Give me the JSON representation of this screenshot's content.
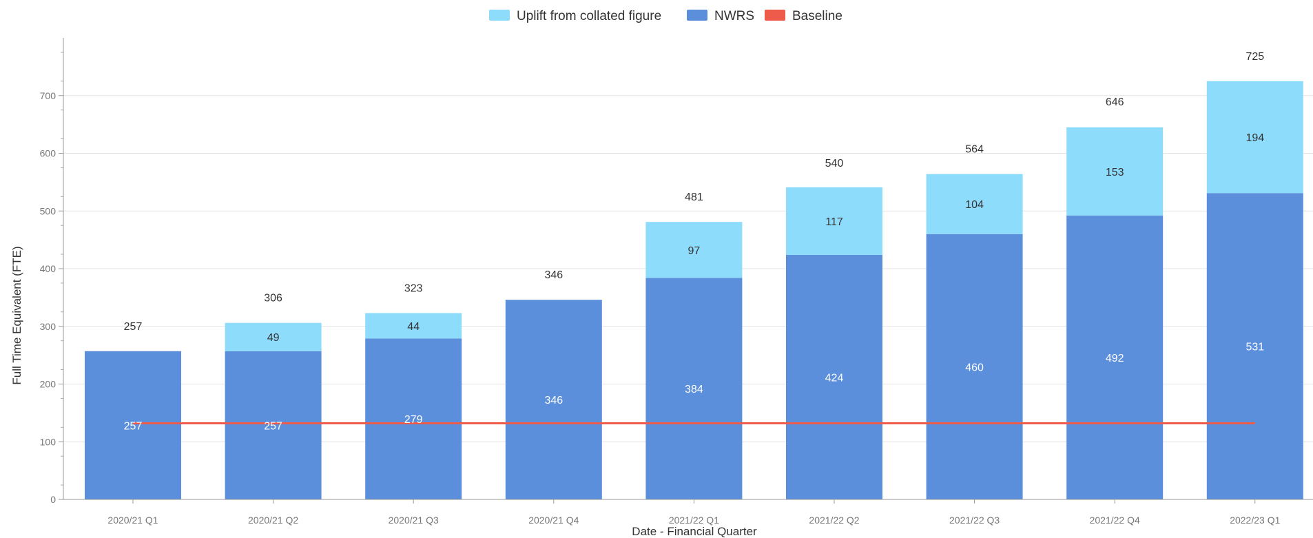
{
  "chart_data": {
    "type": "bar",
    "stacked": true,
    "title": "",
    "xlabel": "Date - Financial Quarter",
    "ylabel": "Full Time Equivalent (FTE)",
    "ylim": [
      0,
      800
    ],
    "yticks": [
      0,
      100,
      200,
      300,
      400,
      500,
      600,
      700
    ],
    "grid": true,
    "legend_position": "top-center",
    "categories": [
      "2020/21 Q1",
      "2020/21 Q2",
      "2020/21 Q3",
      "2020/21 Q4",
      "2021/22 Q1",
      "2021/22 Q2",
      "2021/22 Q3",
      "2021/22 Q4",
      "2022/23 Q1"
    ],
    "series": [
      {
        "name": "NWRS",
        "color": "#5b8fdc",
        "values": [
          257,
          257,
          279,
          346,
          384,
          424,
          460,
          492,
          531
        ]
      },
      {
        "name": "Uplift from collated figure",
        "color": "#8edcfb",
        "values": [
          null,
          49,
          44,
          null,
          97,
          117,
          104,
          153,
          194
        ]
      },
      {
        "name": "Baseline",
        "type": "line",
        "color": "#ef5b4b",
        "values": [
          132,
          132,
          132,
          132,
          132,
          132,
          132,
          132,
          132
        ]
      }
    ],
    "totals": [
      257,
      306,
      323,
      346,
      481,
      540,
      564,
      646,
      725
    ],
    "legend": [
      {
        "name": "Uplift from collated figure",
        "color": "#8edcfb"
      },
      {
        "name": "NWRS",
        "color": "#5b8fdc"
      },
      {
        "name": "Baseline",
        "color": "#ef5b4b"
      }
    ]
  }
}
